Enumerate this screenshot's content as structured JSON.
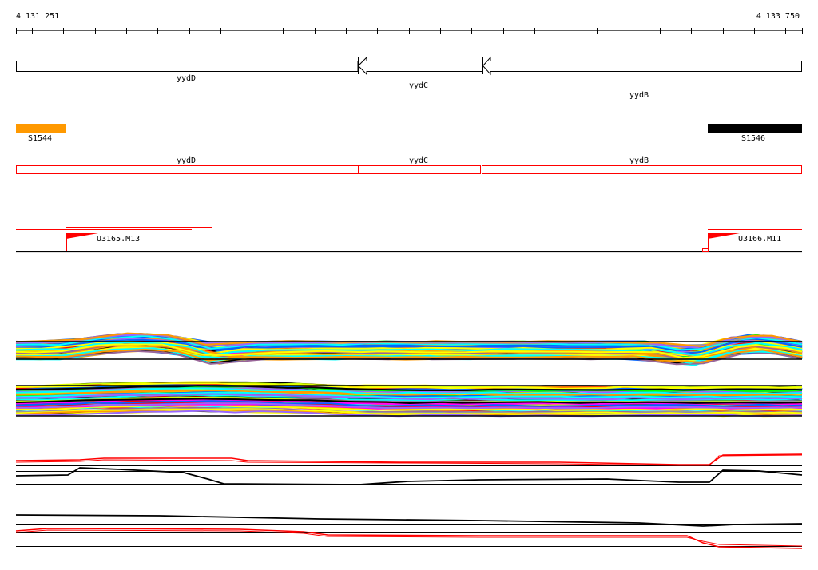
{
  "ruler": {
    "start_label": "4 131 251",
    "end_label": "4 133 750"
  },
  "genes": [
    {
      "name": "yydD",
      "strand": "+"
    },
    {
      "name": "yydC",
      "strand": "-"
    },
    {
      "name": "yydB",
      "strand": "-"
    }
  ],
  "segments": [
    {
      "name": "S1544",
      "color": "#ff9900"
    },
    {
      "name": "S1546",
      "color": "#000000"
    }
  ],
  "transcripts": [
    {
      "name": "yydD"
    },
    {
      "name": "yydC"
    },
    {
      "name": "yydB"
    }
  ],
  "promoters": [
    {
      "name": "U3165.M13"
    },
    {
      "name": "U3166.M11"
    }
  ],
  "colors": {
    "feature_red": "#ff0000",
    "profile_palette": [
      "#ff00ff",
      "#00ffff",
      "#0066ff",
      "#ff0000",
      "#00ff00",
      "#ffff00",
      "#ff9900",
      "#999999",
      "#996699",
      "#000000",
      "#ccff00",
      "#9966ff"
    ]
  }
}
